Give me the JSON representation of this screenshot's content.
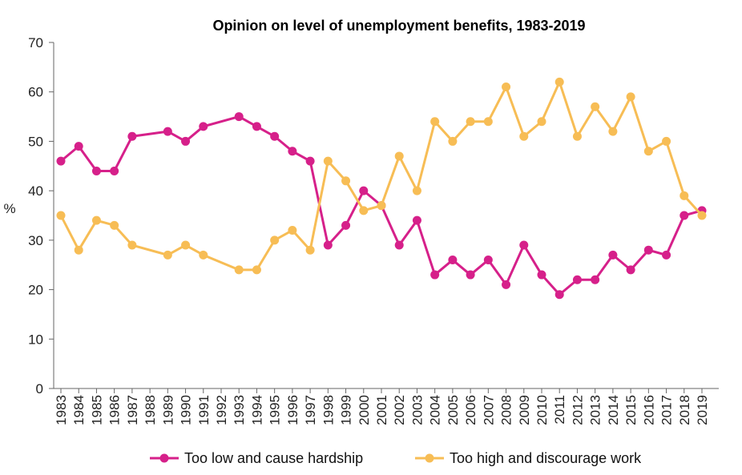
{
  "chart_data": {
    "type": "line",
    "title": "Opinion on level of unemployment benefits, 1983-2019",
    "xlabel": "",
    "ylabel": "%",
    "ylim": [
      0,
      70
    ],
    "yticks": [
      0,
      10,
      20,
      30,
      40,
      50,
      60,
      70
    ],
    "grid": false,
    "legend_position": "bottom",
    "categories": [
      "1983",
      "1984",
      "1985",
      "1986",
      "1987",
      "1988",
      "1989",
      "1990",
      "1991",
      "1992",
      "1993",
      "1994",
      "1995",
      "1996",
      "1997",
      "1998",
      "1999",
      "2000",
      "2001",
      "2002",
      "2003",
      "2004",
      "2005",
      "2006",
      "2007",
      "2008",
      "2009",
      "2010",
      "2011",
      "2012",
      "2013",
      "2014",
      "2015",
      "2016",
      "2017",
      "2018",
      "2019"
    ],
    "series": [
      {
        "name": "Too low and cause hardship",
        "color": "#d6208a",
        "points": [
          {
            "x": "1983",
            "y": 46
          },
          {
            "x": "1984",
            "y": 49
          },
          {
            "x": "1985",
            "y": 44
          },
          {
            "x": "1986",
            "y": 44
          },
          {
            "x": "1987",
            "y": 51
          },
          {
            "x": "1989",
            "y": 52
          },
          {
            "x": "1990",
            "y": 50
          },
          {
            "x": "1991",
            "y": 53
          },
          {
            "x": "1993",
            "y": 55
          },
          {
            "x": "1994",
            "y": 53
          },
          {
            "x": "1995",
            "y": 51
          },
          {
            "x": "1996",
            "y": 48
          },
          {
            "x": "1997",
            "y": 46
          },
          {
            "x": "1998",
            "y": 29
          },
          {
            "x": "1999",
            "y": 33
          },
          {
            "x": "2000",
            "y": 40
          },
          {
            "x": "2001",
            "y": 37
          },
          {
            "x": "2002",
            "y": 29
          },
          {
            "x": "2003",
            "y": 34
          },
          {
            "x": "2004",
            "y": 23
          },
          {
            "x": "2005",
            "y": 26
          },
          {
            "x": "2006",
            "y": 23
          },
          {
            "x": "2007",
            "y": 26
          },
          {
            "x": "2008",
            "y": 21
          },
          {
            "x": "2009",
            "y": 29
          },
          {
            "x": "2010",
            "y": 23
          },
          {
            "x": "2011",
            "y": 19
          },
          {
            "x": "2012",
            "y": 22
          },
          {
            "x": "2013",
            "y": 22
          },
          {
            "x": "2014",
            "y": 27
          },
          {
            "x": "2015",
            "y": 24
          },
          {
            "x": "2016",
            "y": 28
          },
          {
            "x": "2017",
            "y": 27
          },
          {
            "x": "2018",
            "y": 35
          },
          {
            "x": "2019",
            "y": 36
          }
        ]
      },
      {
        "name": "Too high and discourage work",
        "color": "#f7bd55",
        "points": [
          {
            "x": "1983",
            "y": 35
          },
          {
            "x": "1984",
            "y": 28
          },
          {
            "x": "1985",
            "y": 34
          },
          {
            "x": "1986",
            "y": 33
          },
          {
            "x": "1987",
            "y": 29
          },
          {
            "x": "1989",
            "y": 27
          },
          {
            "x": "1990",
            "y": 29
          },
          {
            "x": "1991",
            "y": 27
          },
          {
            "x": "1993",
            "y": 24
          },
          {
            "x": "1994",
            "y": 24
          },
          {
            "x": "1995",
            "y": 30
          },
          {
            "x": "1996",
            "y": 32
          },
          {
            "x": "1997",
            "y": 28
          },
          {
            "x": "1998",
            "y": 46
          },
          {
            "x": "1999",
            "y": 42
          },
          {
            "x": "2000",
            "y": 36
          },
          {
            "x": "2001",
            "y": 37
          },
          {
            "x": "2002",
            "y": 47
          },
          {
            "x": "2003",
            "y": 40
          },
          {
            "x": "2004",
            "y": 54
          },
          {
            "x": "2005",
            "y": 50
          },
          {
            "x": "2006",
            "y": 54
          },
          {
            "x": "2007",
            "y": 54
          },
          {
            "x": "2008",
            "y": 61
          },
          {
            "x": "2009",
            "y": 51
          },
          {
            "x": "2010",
            "y": 54
          },
          {
            "x": "2011",
            "y": 62
          },
          {
            "x": "2012",
            "y": 51
          },
          {
            "x": "2013",
            "y": 57
          },
          {
            "x": "2014",
            "y": 52
          },
          {
            "x": "2015",
            "y": 59
          },
          {
            "x": "2016",
            "y": 48
          },
          {
            "x": "2017",
            "y": 50
          },
          {
            "x": "2018",
            "y": 39
          },
          {
            "x": "2019",
            "y": 35
          }
        ]
      }
    ]
  }
}
